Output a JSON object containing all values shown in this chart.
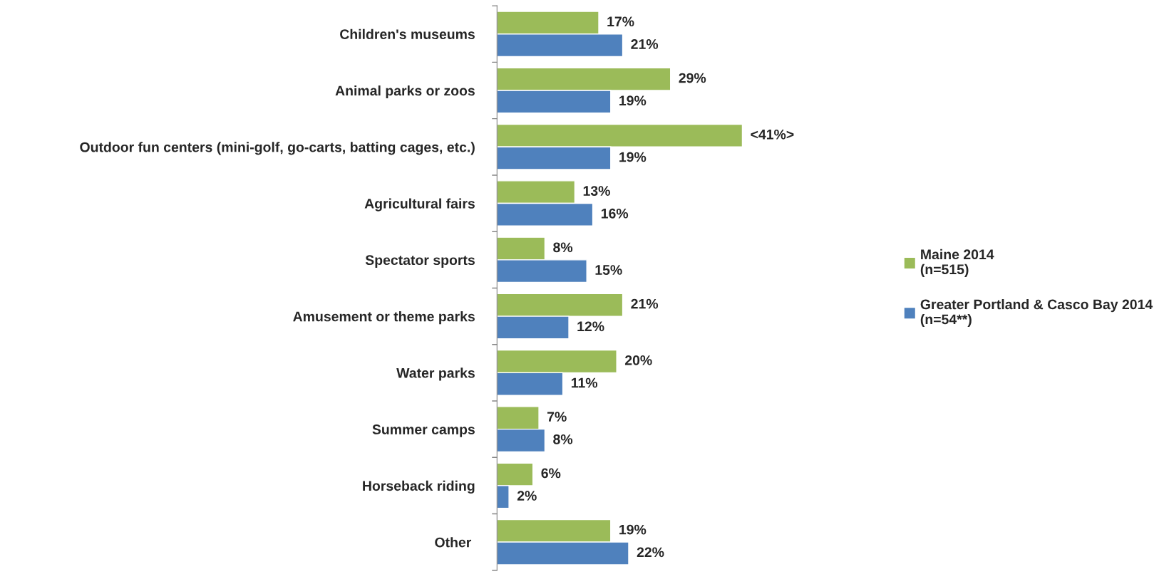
{
  "chart_data": {
    "type": "bar",
    "orientation": "horizontal",
    "legend": "right",
    "categories": [
      "Children's museums",
      "Animal parks or zoos",
      "Outdoor fun centers (mini-golf, go-carts, batting cages, etc.)",
      "Agricultural fairs",
      "Spectator sports",
      "Amusement or theme parks",
      "Water parks",
      "Summer camps",
      "Horseback riding",
      "Other "
    ],
    "series": [
      {
        "name": "Maine 2014\n(n=515)",
        "color": "#9bbb59",
        "values": [
          17,
          29,
          41,
          13,
          8,
          21,
          20,
          7,
          6,
          19
        ],
        "value_labels": [
          "17%",
          "29%",
          "<41%>",
          "13%",
          "8%",
          "21%",
          "20%",
          "7%",
          "6%",
          "19%"
        ]
      },
      {
        "name": "Greater Portland & Casco Bay 2014\n(n=54**)",
        "color": "#4f81bd",
        "values": [
          21,
          19,
          19,
          16,
          15,
          12,
          11,
          8,
          2,
          22
        ],
        "value_labels": [
          "21%",
          "19%",
          "19%",
          "16%",
          "15%",
          "12%",
          "11%",
          "8%",
          "2%",
          "22%"
        ]
      }
    ]
  }
}
